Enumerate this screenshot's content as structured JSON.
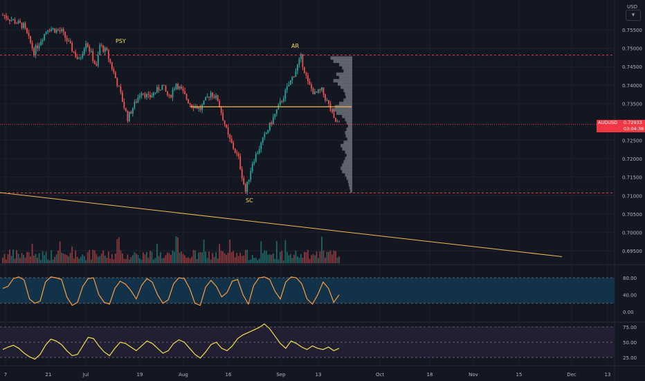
{
  "app": {
    "symbol": "AUDUSD",
    "currency": "USD",
    "last_price": "0.72933",
    "countdown": "03:04:38"
  },
  "colors": {
    "background": "#131722",
    "grid": "#1e222d",
    "axis_text": "#b2b5be",
    "candle_up": "#26a69a",
    "candle_down": "#ef5350",
    "level_line": "#f23645",
    "trend_line": "#f5b94c",
    "volume_profile": "#787b86",
    "osc1_line": "#ff9b3a",
    "osc1_band": "#12324a",
    "osc2_line": "#f5e04c",
    "osc2_band": "#231f33"
  },
  "annotations": {
    "psy": "PSY",
    "ar": "AR",
    "sc": "SC"
  },
  "price_axis": {
    "ticks": [
      "0.75500",
      "0.75000",
      "0.74500",
      "0.74000",
      "0.73500",
      "0.72500",
      "0.72000",
      "0.71500",
      "0.71000",
      "0.70500",
      "0.70000",
      "0.69500"
    ]
  },
  "osc1_axis": {
    "ticks": [
      "80.00",
      "40.00",
      "0.00"
    ]
  },
  "osc2_axis": {
    "ticks": [
      "75.00",
      "50.00",
      "25.00"
    ]
  },
  "time_axis": {
    "ticks": [
      "7",
      "21",
      "Jul",
      "19",
      "Aug",
      "16",
      "Sep",
      "13",
      "Oct",
      "18",
      "Nov",
      "15",
      "Dec",
      "13"
    ]
  },
  "chart_data": {
    "type": "candlestick",
    "symbol": "AUDUSD",
    "price_range": [
      0.6925,
      0.758
    ],
    "levels": [
      0.7481,
      0.7107
    ],
    "poc": 0.7341,
    "current_price": 0.72933,
    "anchors": [
      [
        0,
        0.759
      ],
      [
        12,
        0.756
      ],
      [
        18,
        0.749
      ],
      [
        26,
        0.7555
      ],
      [
        34,
        0.7545
      ],
      [
        44,
        0.7465
      ],
      [
        48,
        0.752
      ],
      [
        54,
        0.7448
      ],
      [
        56,
        0.7508
      ],
      [
        60,
        0.7488
      ],
      [
        66,
        0.7405
      ],
      [
        72,
        0.731
      ],
      [
        80,
        0.7385
      ],
      [
        84,
        0.7365
      ],
      [
        92,
        0.7398
      ],
      [
        96,
        0.7365
      ],
      [
        100,
        0.7405
      ],
      [
        108,
        0.735
      ],
      [
        114,
        0.7335
      ],
      [
        120,
        0.738
      ],
      [
        124,
        0.736
      ],
      [
        130,
        0.726
      ],
      [
        136,
        0.72
      ],
      [
        140,
        0.711
      ],
      [
        144,
        0.719
      ],
      [
        150,
        0.725
      ],
      [
        156,
        0.731
      ],
      [
        162,
        0.737
      ],
      [
        168,
        0.743
      ],
      [
        172,
        0.7475
      ],
      [
        176,
        0.7405
      ],
      [
        180,
        0.7375
      ],
      [
        184,
        0.7385
      ],
      [
        188,
        0.7345
      ],
      [
        191,
        0.7305
      ],
      [
        194,
        0.7293
      ]
    ],
    "osc1": [
      55,
      60,
      78,
      82,
      75,
      30,
      20,
      25,
      70,
      82,
      80,
      76,
      35,
      15,
      22,
      60,
      78,
      80,
      40,
      22,
      18,
      55,
      72,
      65,
      50,
      30,
      62,
      78,
      70,
      40,
      20,
      28,
      66,
      80,
      78,
      55,
      20,
      15,
      58,
      74,
      60,
      35,
      45,
      72,
      76,
      40,
      18,
      62,
      80,
      82,
      76,
      48,
      30,
      70,
      82,
      80,
      66,
      30,
      18,
      40,
      70,
      55,
      22,
      40
    ],
    "osc2": [
      38,
      42,
      45,
      40,
      32,
      26,
      22,
      30,
      45,
      55,
      52,
      46,
      36,
      28,
      30,
      44,
      58,
      56,
      44,
      34,
      28,
      40,
      50,
      48,
      42,
      36,
      44,
      52,
      48,
      40,
      32,
      36,
      48,
      54,
      50,
      40,
      30,
      24,
      34,
      46,
      50,
      40,
      36,
      44,
      56,
      62,
      66,
      70,
      74,
      80,
      72,
      60,
      48,
      40,
      52,
      48,
      42,
      38,
      44,
      40,
      38,
      42,
      36,
      40
    ],
    "trend_line_start": 0.7108,
    "trend_line_end": 0.6934
  }
}
